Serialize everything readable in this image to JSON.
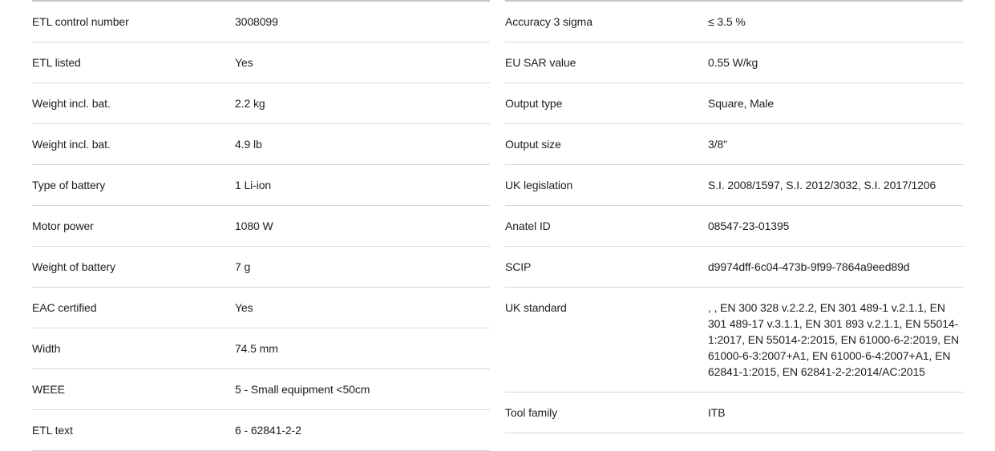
{
  "theme": {
    "background": "#ffffff",
    "text_color": "#1e1e1e",
    "row_divider_color": "#d8d8d8",
    "table_top_border_color": "#c6c6c6"
  },
  "spec_tables": {
    "left": {
      "rows": [
        {
          "label": "ETL control number",
          "value": "3008099"
        },
        {
          "label": "ETL listed",
          "value": "Yes"
        },
        {
          "label": "Weight incl. bat.",
          "value": "2.2 kg"
        },
        {
          "label": "Weight incl. bat.",
          "value": "4.9 lb"
        },
        {
          "label": "Type of battery",
          "value": "1 Li-ion"
        },
        {
          "label": "Motor power",
          "value": "1080 W"
        },
        {
          "label": "Weight of battery",
          "value": "7 g"
        },
        {
          "label": "EAC certified",
          "value": "Yes"
        },
        {
          "label": "Width",
          "value": "74.5 mm"
        },
        {
          "label": "WEEE",
          "value": "5 - Small equipment <50cm"
        },
        {
          "label": "ETL text",
          "value": "6 - 62841-2-2"
        }
      ]
    },
    "right": {
      "rows": [
        {
          "label": "Accuracy 3 sigma",
          "value": "≤ 3.5 %"
        },
        {
          "label": "EU SAR value",
          "value": "0.55 W/kg"
        },
        {
          "label": "Output type",
          "value": "Square, Male"
        },
        {
          "label": "Output size",
          "value": "3/8\""
        },
        {
          "label": "UK legislation",
          "value": "S.I. 2008/1597, S.I. 2012/3032, S.I. 2017/1206"
        },
        {
          "label": "Anatel ID",
          "value": "08547-23-01395"
        },
        {
          "label": "SCIP",
          "value": "d9974dff-6c04-473b-9f99-7864a9eed89d"
        },
        {
          "label": "UK standard",
          "value": ", , EN 300 328 v.2.2.2, EN 301 489-1 v.2.1.1, EN 301 489-17 v.3.1.1, EN 301 893 v.2.1.1, EN 55014-1:2017, EN 55014-2:2015, EN 61000-6-2:2019, EN 61000-6-3:2007+A1, EN 61000-6-4:2007+A1, EN 62841-1:2015, EN 62841-2-2:2014/AC:2015"
        },
        {
          "label": "Tool family",
          "value": "ITB"
        }
      ]
    }
  }
}
